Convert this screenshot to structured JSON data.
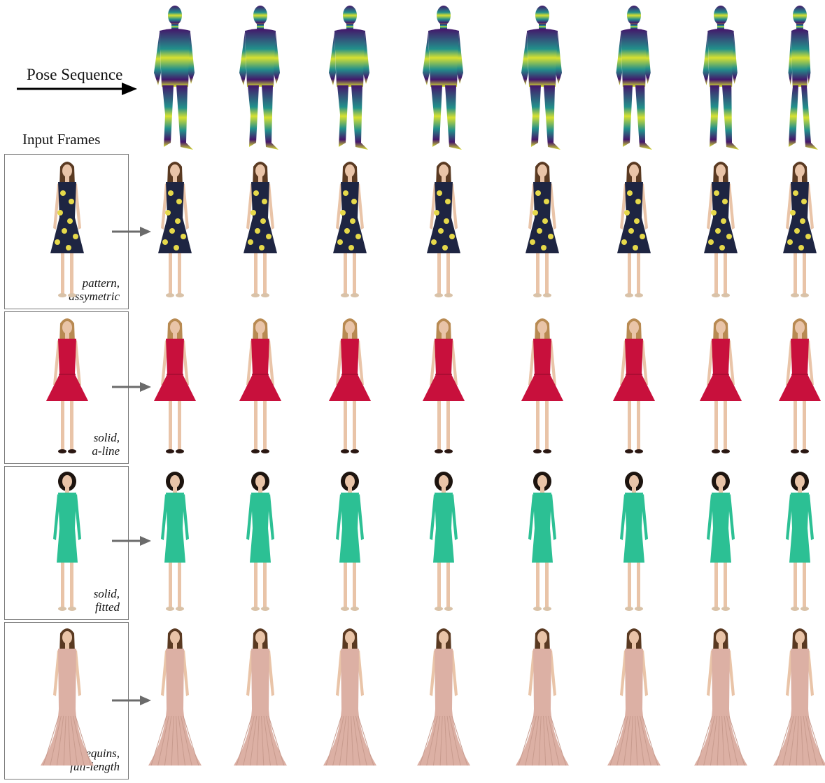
{
  "header": {
    "pose_label": "Pose Sequence",
    "input_label": "Input Frames"
  },
  "rows": [
    {
      "caption_line1": "pattern,",
      "caption_line2": "assymetric",
      "dress_color": "#1e2542",
      "accent_color": "#e6d94a",
      "style": "pattern"
    },
    {
      "caption_line1": "solid,",
      "caption_line2": "a-line",
      "dress_color": "#c8103c",
      "accent_color": "#a30c30",
      "style": "aline"
    },
    {
      "caption_line1": "solid,",
      "caption_line2": "fitted",
      "dress_color": "#2cc094",
      "accent_color": "#22a57e",
      "style": "fitted"
    },
    {
      "caption_line1": "sequins,",
      "caption_line2": "full-length",
      "dress_color": "#dcb0a4",
      "accent_color": "#c89b8e",
      "style": "gown"
    }
  ],
  "pose_colors": {
    "top": "#44166a",
    "mid": "#22908b",
    "low": "#d8e130"
  },
  "icons": {
    "pose_arrow": "arrow-right-icon",
    "row_arrow": "arrow-right-icon"
  }
}
